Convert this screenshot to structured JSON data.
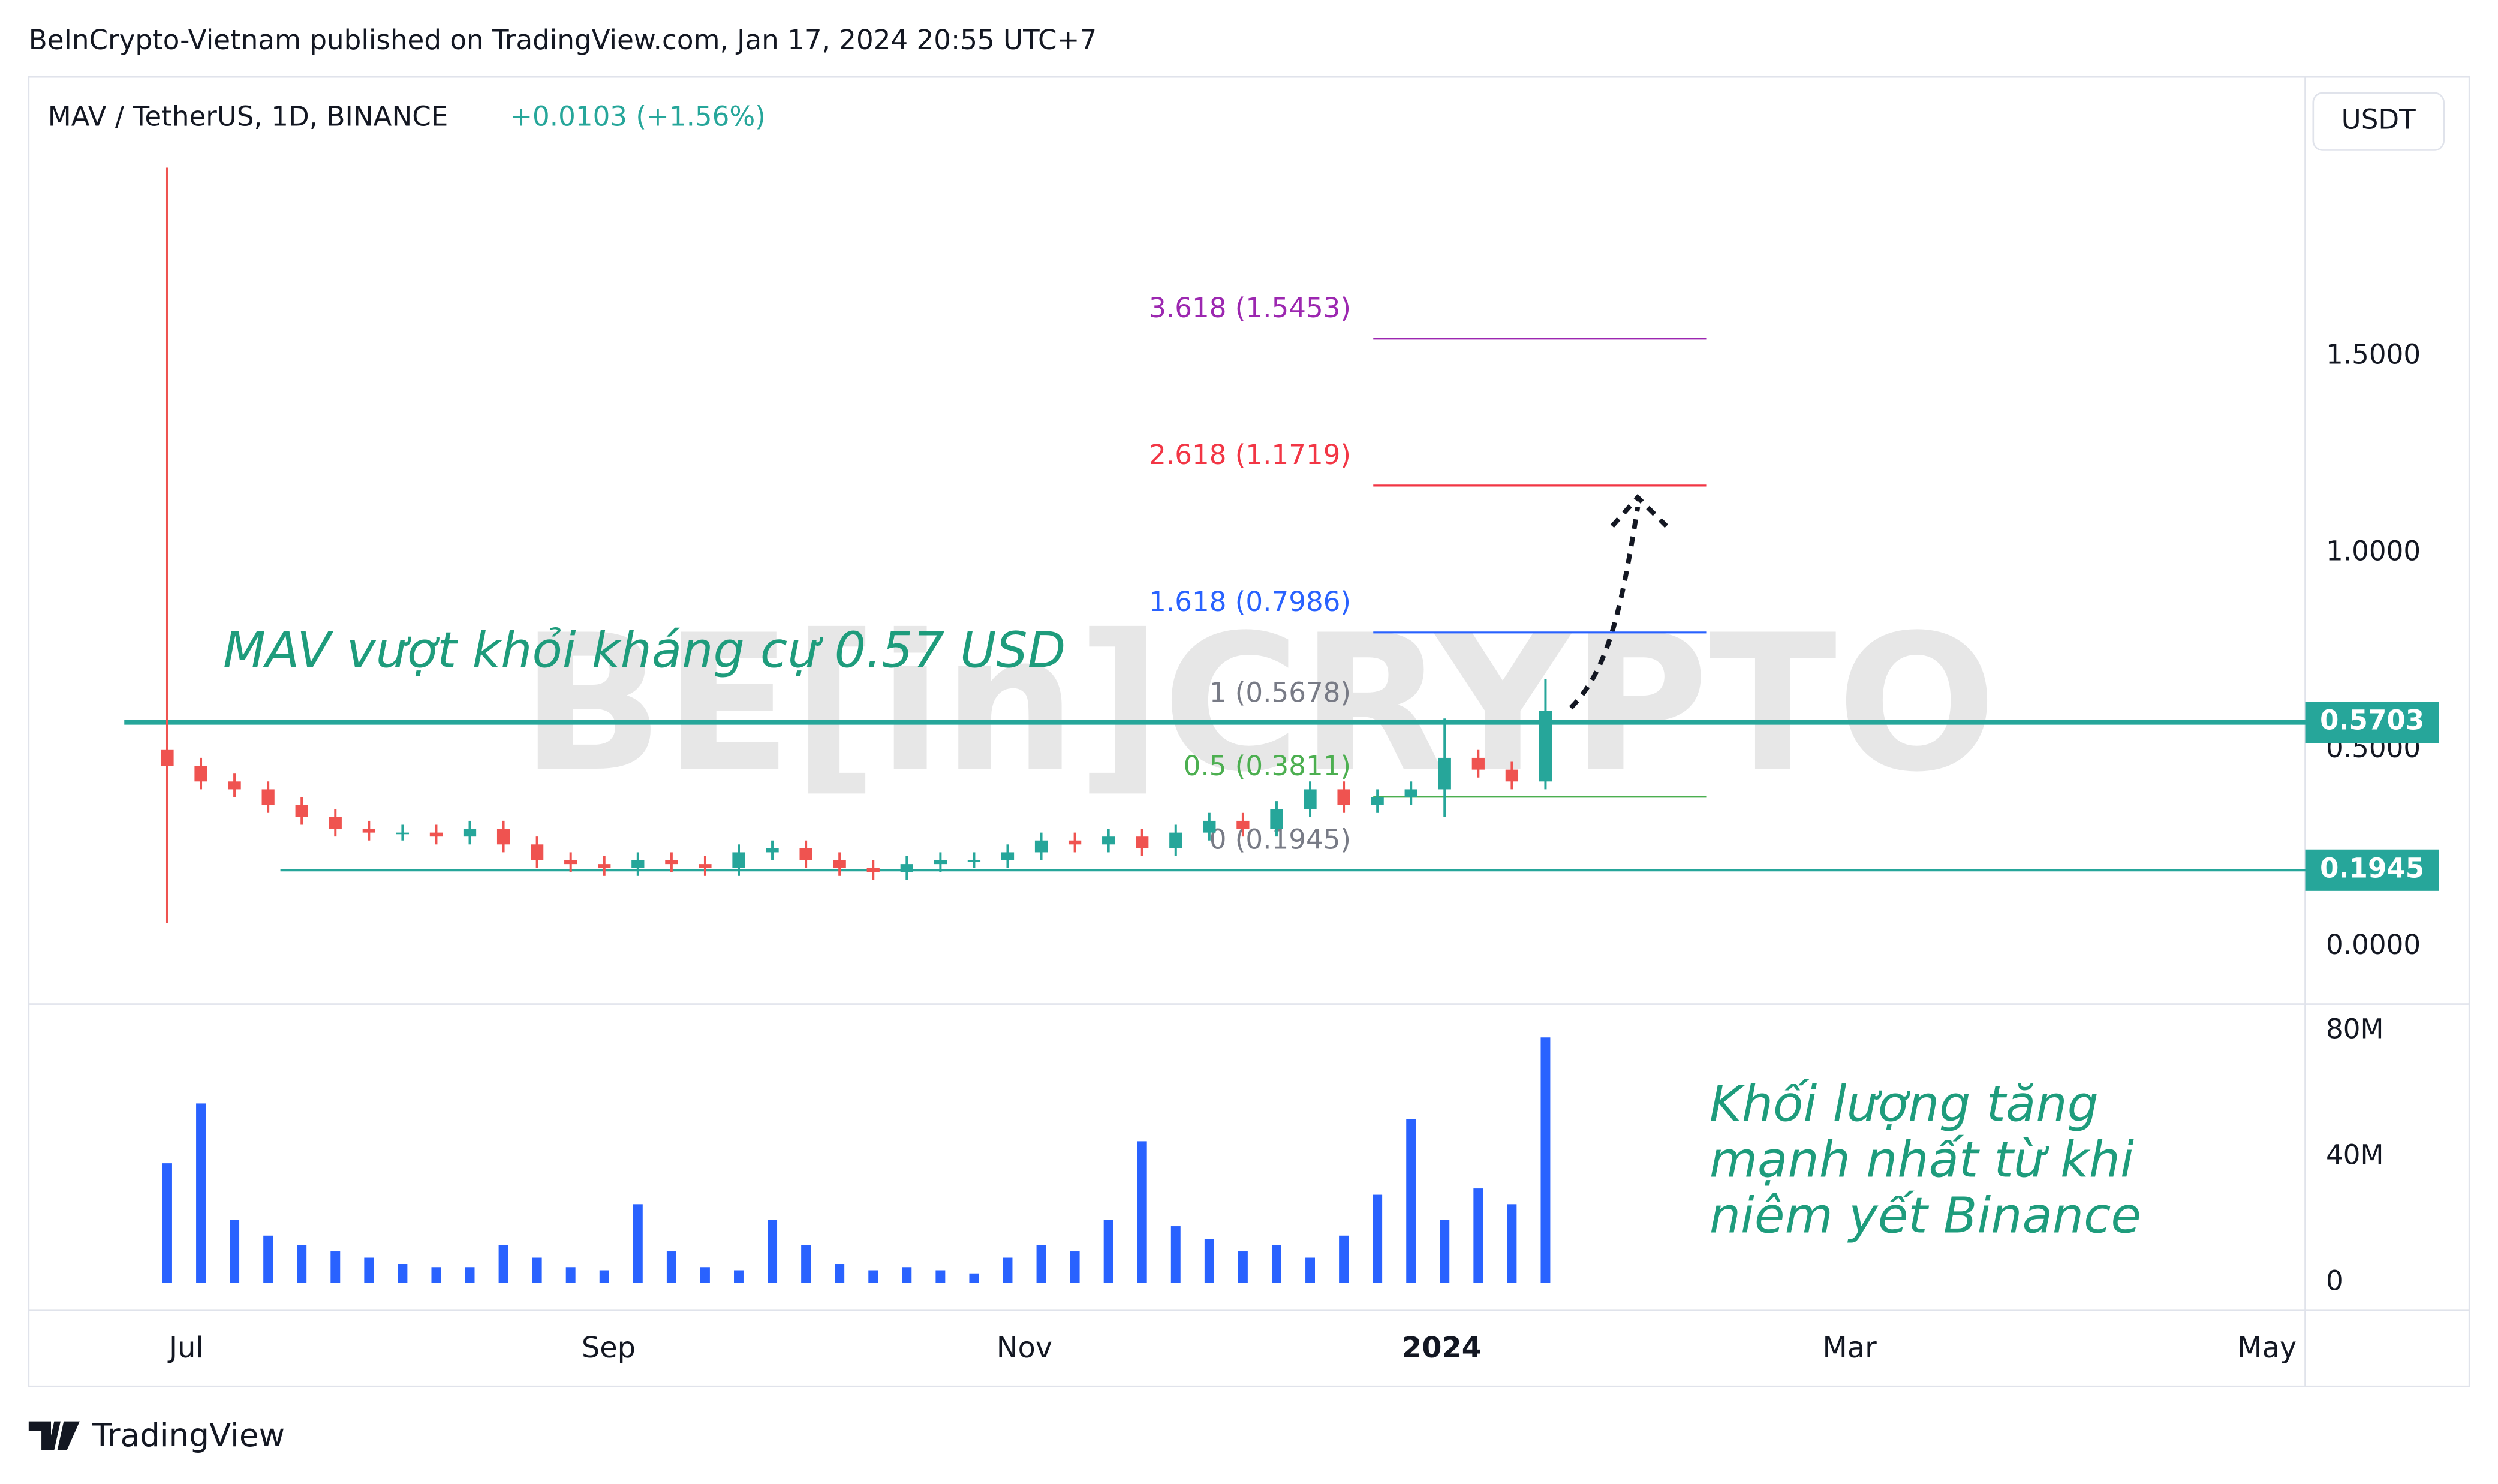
{
  "header": "BeInCrypto-Vietnam published on TradingView.com, Jan 17, 2024 20:55 UTC+7",
  "footer": "TradingView",
  "chart_data": {
    "type": "candlestick",
    "symbol": "MAV / TetherUS, 1D, BINANCE",
    "change": "+0.0103 (+1.56%)",
    "currency": "USDT",
    "watermark": "BE[in]CRYPTO",
    "annotation": "MAV vượt khỏi kháng cự 0.57 USD",
    "volume_annotation": [
      "Khối lượng tăng",
      "mạnh nhất từ khi",
      "niêm yết Binance"
    ],
    "x_labels": [
      "Jul",
      "Sep",
      "Nov",
      "2024",
      "Mar",
      "May"
    ],
    "up_color": "#26a69a",
    "down_color": "#ef5350",
    "ylim": [
      -0.1457,
      2.2105
    ],
    "yticks": [
      {
        "value": 0,
        "label": "0.0000"
      },
      {
        "value": 0.5,
        "label": "0.5000"
      },
      {
        "value": 1,
        "label": "1.0000"
      },
      {
        "value": 1.5,
        "label": "1.5000"
      }
    ],
    "open": [
      0.5,
      0.46,
      0.42,
      0.4,
      0.36,
      0.33,
      0.3,
      0.29,
      0.29,
      0.28,
      0.3,
      0.26,
      0.22,
      0.21,
      0.2,
      0.22,
      0.21,
      0.2,
      0.24,
      0.25,
      0.22,
      0.2,
      0.19,
      0.21,
      0.22,
      0.22,
      0.24,
      0.27,
      0.26,
      0.28,
      0.25,
      0.29,
      0.32,
      0.3,
      0.35,
      0.4,
      0.36,
      0.38,
      0.4,
      0.48,
      0.45,
      0.42
    ],
    "high": [
      1.98,
      0.48,
      0.44,
      0.42,
      0.38,
      0.35,
      0.32,
      0.31,
      0.31,
      0.32,
      0.32,
      0.28,
      0.24,
      0.23,
      0.24,
      0.24,
      0.23,
      0.26,
      0.27,
      0.27,
      0.24,
      0.22,
      0.23,
      0.24,
      0.24,
      0.26,
      0.29,
      0.29,
      0.3,
      0.3,
      0.31,
      0.34,
      0.34,
      0.37,
      0.42,
      0.42,
      0.4,
      0.42,
      0.58,
      0.5,
      0.47,
      0.68
    ],
    "low": [
      0.06,
      0.4,
      0.38,
      0.34,
      0.31,
      0.28,
      0.27,
      0.27,
      0.26,
      0.26,
      0.24,
      0.2,
      0.19,
      0.18,
      0.18,
      0.19,
      0.18,
      0.18,
      0.22,
      0.2,
      0.18,
      0.17,
      0.17,
      0.19,
      0.2,
      0.2,
      0.22,
      0.24,
      0.24,
      0.23,
      0.23,
      0.27,
      0.28,
      0.28,
      0.33,
      0.34,
      0.34,
      0.36,
      0.33,
      0.43,
      0.4,
      0.4
    ],
    "close": [
      0.46,
      0.42,
      0.4,
      0.36,
      0.33,
      0.3,
      0.29,
      0.29,
      0.28,
      0.3,
      0.26,
      0.22,
      0.21,
      0.2,
      0.22,
      0.21,
      0.2,
      0.24,
      0.25,
      0.22,
      0.2,
      0.19,
      0.21,
      0.22,
      0.22,
      0.24,
      0.27,
      0.26,
      0.28,
      0.25,
      0.29,
      0.32,
      0.3,
      0.35,
      0.4,
      0.36,
      0.38,
      0.4,
      0.48,
      0.45,
      0.42,
      0.6
    ],
    "fib_levels": [
      {
        "label": "3.618 (1.5453)",
        "value": 1.5453,
        "color": "#9c27b0"
      },
      {
        "label": "2.618 (1.1719)",
        "value": 1.1719,
        "color": "#f23645"
      },
      {
        "label": "1.618 (0.7986)",
        "value": 0.7986,
        "color": "#2962ff"
      },
      {
        "label": "1 (0.5678)",
        "value": 0.5678,
        "color": "#787b86"
      },
      {
        "label": "0.5 (0.3811)",
        "value": 0.3811,
        "color": "#4caf50"
      },
      {
        "label": "0 (0.1945)",
        "value": 0.1945,
        "color": "#787b86"
      }
    ],
    "horizontal_lines": [
      {
        "value": 0.5703,
        "color": "#26a69a"
      },
      {
        "value": 0.1945,
        "color": "#26a69a"
      }
    ],
    "volume": {
      "color": "#2962ff",
      "ylim": [
        -7600000,
        87600000
      ],
      "yticks": [
        0,
        {
          "value": 40000000,
          "label": "40M"
        },
        {
          "value": 80000000,
          "label": "80M"
        }
      ],
      "values": [
        38000000,
        57000000,
        20000000,
        15000000,
        12000000,
        10000000,
        8000000,
        6000000,
        5000000,
        5000000,
        12000000,
        8000000,
        5000000,
        4000000,
        25000000,
        10000000,
        5000000,
        4000000,
        20000000,
        12000000,
        6000000,
        4000000,
        5000000,
        4000000,
        3000000,
        8000000,
        12000000,
        10000000,
        20000000,
        45000000,
        18000000,
        14000000,
        10000000,
        12000000,
        8000000,
        15000000,
        28000000,
        52000000,
        20000000,
        30000000,
        25000000,
        78000000
      ]
    }
  }
}
